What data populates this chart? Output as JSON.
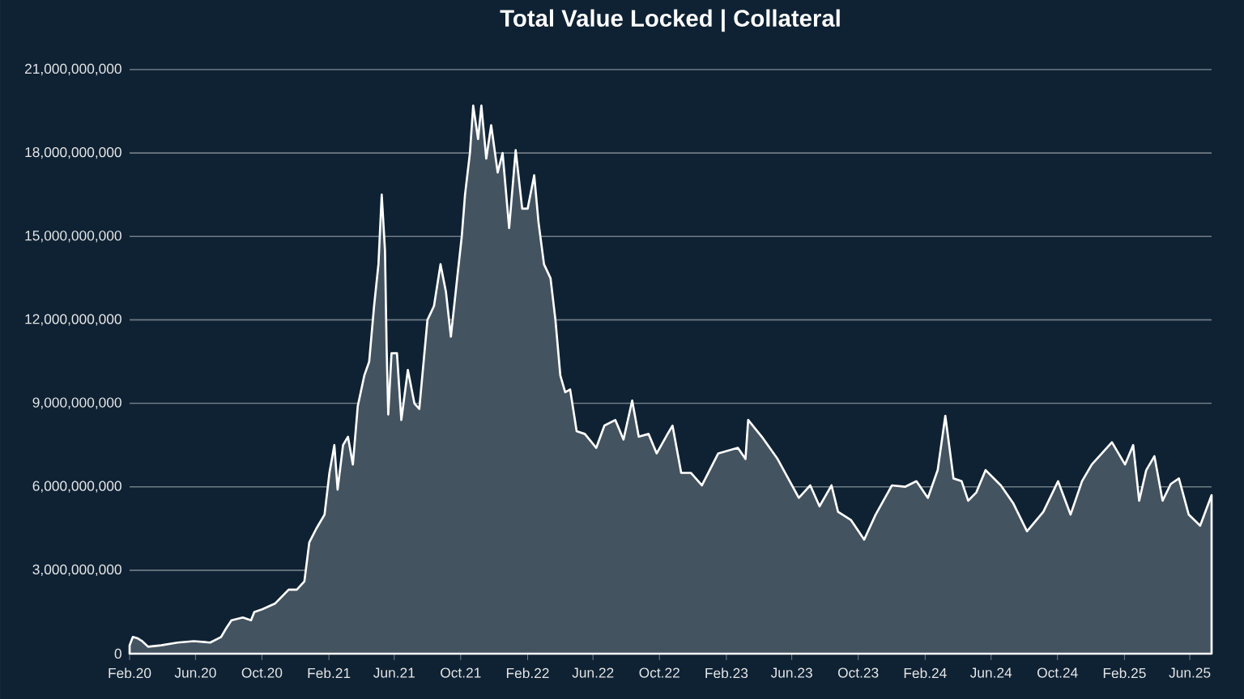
{
  "chart_data": {
    "type": "area",
    "title": "Total Value Locked | Collateral",
    "x": [
      "2020-02-01",
      "2020-02-07",
      "2020-02-16",
      "2020-02-24",
      "2020-03-06",
      "2020-03-30",
      "2020-04-29",
      "2020-05-29",
      "2020-06-28",
      "2020-07-18",
      "2020-07-27",
      "2020-08-06",
      "2020-08-27",
      "2020-09-11",
      "2020-09-17",
      "2020-10-02",
      "2020-10-25",
      "2020-11-19",
      "2020-12-04",
      "2020-12-18",
      "2020-12-27",
      "2021-01-09",
      "2021-01-24",
      "2021-02-02",
      "2021-02-11",
      "2021-02-17",
      "2021-02-27",
      "2021-03-08",
      "2021-03-17",
      "2021-03-26",
      "2021-04-07",
      "2021-04-16",
      "2021-04-25",
      "2021-05-03",
      "2021-05-09",
      "2021-05-15",
      "2021-05-18",
      "2021-05-21",
      "2021-05-27",
      "2021-06-06",
      "2021-06-14",
      "2021-06-26",
      "2021-07-08",
      "2021-07-17",
      "2021-08-01",
      "2021-08-13",
      "2021-08-25",
      "2021-09-04",
      "2021-09-13",
      "2021-09-24",
      "2021-10-03",
      "2021-10-09",
      "2021-10-18",
      "2021-10-24",
      "2021-11-02",
      "2021-11-08",
      "2021-11-17",
      "2021-11-26",
      "2021-12-08",
      "2021-12-17",
      "2021-12-29",
      "2022-01-10",
      "2022-01-22",
      "2022-02-01",
      "2022-02-13",
      "2022-02-21",
      "2022-03-03",
      "2022-03-15",
      "2022-03-24",
      "2022-04-02",
      "2022-04-11",
      "2022-04-20",
      "2022-05-02",
      "2022-05-17",
      "2022-06-07",
      "2022-06-22",
      "2022-07-12",
      "2022-07-27",
      "2022-08-12",
      "2022-08-24",
      "2022-09-11",
      "2022-09-26",
      "2022-10-16",
      "2022-10-25",
      "2022-11-10",
      "2022-11-28",
      "2022-12-18",
      "2023-01-17",
      "2023-02-22",
      "2023-03-08",
      "2023-03-13",
      "2023-04-07",
      "2023-05-06",
      "2023-06-14",
      "2023-07-05",
      "2023-07-22",
      "2023-08-13",
      "2023-08-25",
      "2023-09-18",
      "2023-10-12",
      "2023-11-02",
      "2023-12-02",
      "2023-12-26",
      "2024-01-16",
      "2024-02-06",
      "2024-02-24",
      "2024-03-09",
      "2024-03-24",
      "2024-04-08",
      "2024-04-20",
      "2024-05-05",
      "2024-05-22",
      "2024-06-19",
      "2024-07-12",
      "2024-08-06",
      "2024-09-05",
      "2024-10-02",
      "2024-10-25",
      "2024-11-15",
      "2024-12-03",
      "2025-01-09",
      "2025-02-02",
      "2025-02-17",
      "2025-02-28",
      "2025-03-13",
      "2025-03-28",
      "2025-04-12",
      "2025-04-27",
      "2025-05-12",
      "2025-05-30",
      "2025-06-20",
      "2025-07-11"
    ],
    "series": [
      {
        "color": "#ffffff",
        "values": [
          300000000,
          600000000,
          550000000,
          450000000,
          250000000,
          300000000,
          400000000,
          450000000,
          400000000,
          600000000,
          900000000,
          1200000000,
          1300000000,
          1200000000,
          1500000000,
          1600000000,
          1800000000,
          2300000000,
          2300000000,
          2600000000,
          4000000000,
          4500000000,
          5000000000,
          6500000000,
          7500000000,
          5900000000,
          7500000000,
          7800000000,
          6800000000,
          8900000000,
          10000000000,
          10500000000,
          12500000000,
          14000000000,
          16500000000,
          14500000000,
          11000000000,
          8600000000,
          10800000000,
          10800000000,
          8400000000,
          10200000000,
          9000000000,
          8800000000,
          12000000000,
          12500000000,
          14000000000,
          13000000000,
          11400000000,
          13400000000,
          15000000000,
          16500000000,
          18000000000,
          19700000000,
          18500000000,
          19700000000,
          17800000000,
          19000000000,
          17300000000,
          18000000000,
          15300000000,
          18100000000,
          16000000000,
          16000000000,
          17200000000,
          15500000000,
          14000000000,
          13500000000,
          12000000000,
          10000000000,
          9400000000,
          9500000000,
          8000000000,
          7900000000,
          7400000000,
          8200000000,
          8400000000,
          7700000000,
          9100000000,
          7800000000,
          7900000000,
          7200000000,
          7900000000,
          8200000000,
          6500000000,
          6500000000,
          6050000000,
          7200000000,
          7400000000,
          7000000000,
          8400000000,
          7800000000,
          7000000000,
          5600000000,
          6050000000,
          5300000000,
          6050000000,
          5100000000,
          4800000000,
          4100000000,
          5000000000,
          6050000000,
          6000000000,
          6200000000,
          5600000000,
          6600000000,
          8550000000,
          6300000000,
          6200000000,
          5500000000,
          5800000000,
          6600000000,
          6050000000,
          5400000000,
          4400000000,
          5100000000,
          6200000000,
          5000000000,
          6200000000,
          6800000000,
          7600000000,
          6800000000,
          7500000000,
          5500000000,
          6600000000,
          7100000000,
          5500000000,
          6100000000,
          6300000000,
          5000000000,
          4600000000,
          5700000000
        ]
      }
    ],
    "xlim": [
      "2020-02-01",
      "2025-07-11"
    ],
    "xticks": [
      {
        "value": "2020-02",
        "label": "Feb.20"
      },
      {
        "value": "2020-06",
        "label": "Jun.20"
      },
      {
        "value": "2020-10",
        "label": "Oct.20"
      },
      {
        "value": "2021-02",
        "label": "Feb.21"
      },
      {
        "value": "2021-06",
        "label": "Jun.21"
      },
      {
        "value": "2021-10",
        "label": "Oct.21"
      },
      {
        "value": "2022-02",
        "label": "Feb.22"
      },
      {
        "value": "2022-06",
        "label": "Jun.22"
      },
      {
        "value": "2022-10",
        "label": "Oct.22"
      },
      {
        "value": "2023-02",
        "label": "Feb.23"
      },
      {
        "value": "2023-06",
        "label": "Jun.23"
      },
      {
        "value": "2023-10",
        "label": "Oct.23"
      },
      {
        "value": "2024-02",
        "label": "Feb.24"
      },
      {
        "value": "2024-06",
        "label": "Jun.24"
      },
      {
        "value": "2024-10",
        "label": "Oct.24"
      },
      {
        "value": "2025-02",
        "label": "Feb.25"
      },
      {
        "value": "2025-06",
        "label": "Jun.25"
      }
    ],
    "ylim": [
      0,
      21000000000
    ],
    "yticks": [
      0,
      {
        "value": 3000000000,
        "label": "3,000,000,000"
      },
      {
        "value": 6000000000,
        "label": "6,000,000,000"
      },
      {
        "value": 9000000000,
        "label": "9,000,000,000"
      },
      {
        "value": 12000000000,
        "label": "12,000,000,000"
      },
      {
        "value": 15000000000,
        "label": "15,000,000,000"
      },
      {
        "value": 18000000000,
        "label": "18,000,000,000"
      },
      {
        "value": 21000000000,
        "label": "21,000,000,000"
      }
    ],
    "grid": "y"
  }
}
